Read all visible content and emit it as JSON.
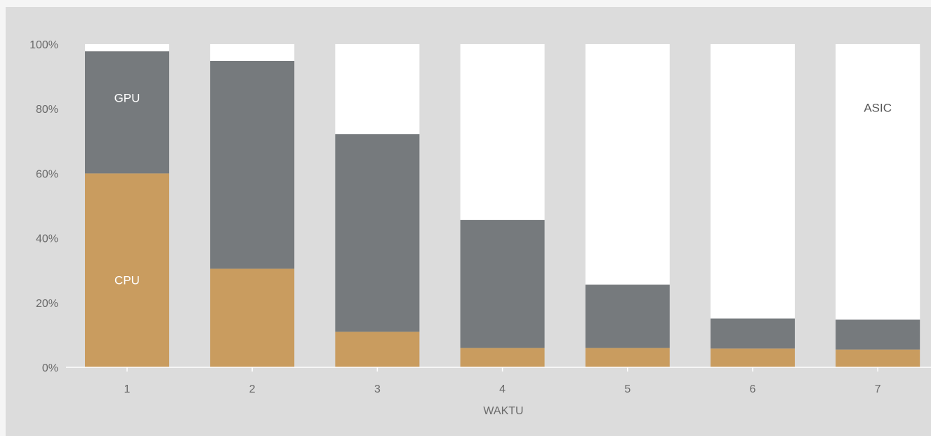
{
  "chart_data": {
    "type": "bar",
    "stacked": true,
    "percent_stacked": true,
    "categories": [
      "1",
      "2",
      "3",
      "4",
      "5",
      "6",
      "7"
    ],
    "series": [
      {
        "name": "CPU",
        "values": [
          60,
          30.5,
          11,
          6,
          6,
          5.8,
          5.5
        ],
        "color": "#c99c5f",
        "label_color": "#ffffff"
      },
      {
        "name": "GPU",
        "values": [
          37.8,
          64.3,
          61.2,
          39.6,
          19.6,
          9.3,
          9.3
        ],
        "color": "#767a7d",
        "label_color": "#ffffff"
      },
      {
        "name": "ASIC",
        "values": [
          2.2,
          5.2,
          27.8,
          54.4,
          74.4,
          84.9,
          85.2
        ],
        "color": "#ffffff",
        "label_color": "#555555"
      }
    ],
    "xlabel": "WAKTU",
    "ylabel": "",
    "ylim": [
      0,
      100
    ],
    "y_ticks": [
      "0%",
      "20%",
      "40%",
      "60%",
      "80%",
      "100%"
    ],
    "y_tick_values": [
      0,
      20,
      40,
      60,
      80,
      100
    ],
    "grid": false
  },
  "colors": {
    "panel_background": "#dcdcdc",
    "page_background": "#f5f5f5",
    "axis_line": "#ffffff",
    "tick_text": "#6a6a6a"
  }
}
